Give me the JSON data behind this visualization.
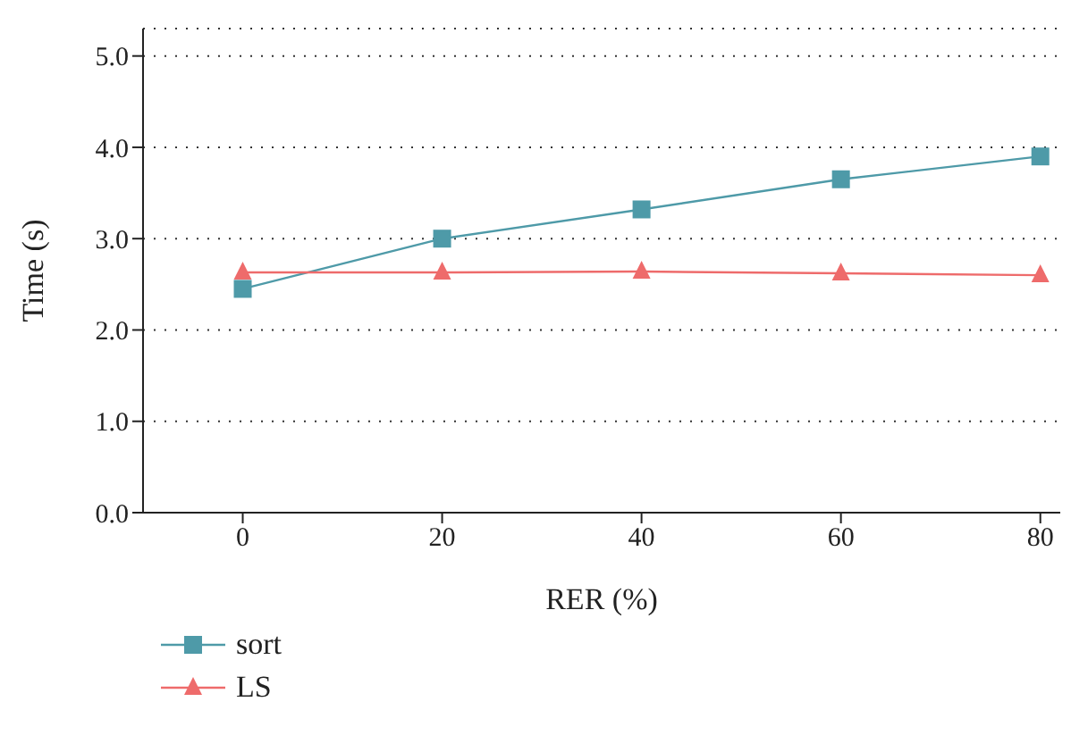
{
  "chart_data": {
    "type": "line",
    "xlabel": "RER (%)",
    "ylabel": "Time (s)",
    "x": [
      0,
      20,
      40,
      60,
      80
    ],
    "series": [
      {
        "name": "sort",
        "color": "#4e9aa8",
        "marker": "square",
        "values": [
          2.45,
          3.0,
          3.32,
          3.65,
          3.9
        ]
      },
      {
        "name": "LS",
        "color": "#ee6b6b",
        "marker": "triangle",
        "values": [
          2.63,
          2.63,
          2.64,
          2.62,
          2.6
        ]
      }
    ],
    "xlim": [
      -10,
      82
    ],
    "xticks": [
      0,
      20,
      40,
      60,
      80
    ],
    "ylim": [
      0,
      5.3
    ],
    "yticks": [
      {
        "value": 0,
        "label": "0.0"
      },
      {
        "value": 1,
        "label": "1.0"
      },
      {
        "value": 2,
        "label": "2.0"
      },
      {
        "value": 3,
        "label": "3.0"
      },
      {
        "value": 4,
        "label": "4.0"
      },
      {
        "value": 5,
        "label": "5.0"
      }
    ],
    "grid": "y",
    "legend": "bottom left"
  }
}
